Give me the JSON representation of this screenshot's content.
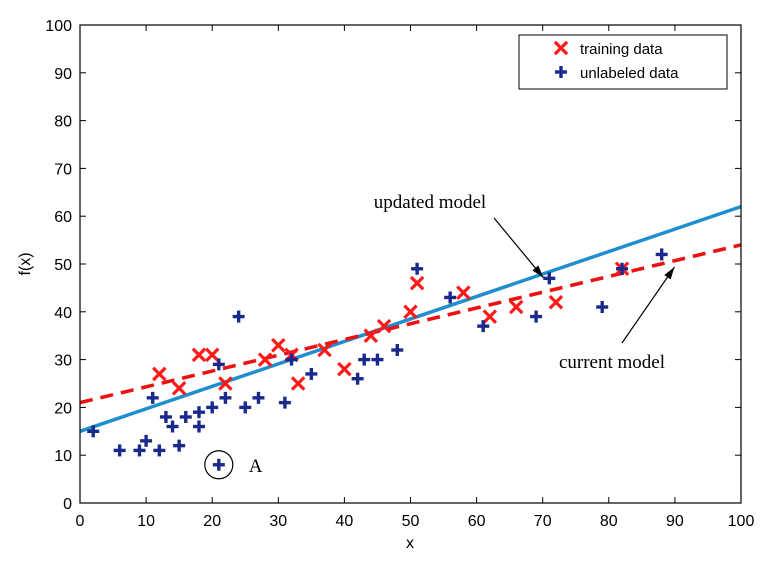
{
  "chart_data": {
    "type": "scatter",
    "xlabel": "x",
    "ylabel": "f(x)",
    "xlim": [
      0,
      100
    ],
    "ylim": [
      0,
      100
    ],
    "xticks": [
      "0",
      "10",
      "20",
      "30",
      "40",
      "50",
      "60",
      "70",
      "80",
      "90",
      "100"
    ],
    "yticks": [
      "0",
      "10",
      "20",
      "30",
      "40",
      "50",
      "60",
      "70",
      "80",
      "90",
      "100"
    ],
    "legend_position": "top-right",
    "legend": [
      {
        "label": "training data",
        "marker": "x",
        "color": "#ff1a1a"
      },
      {
        "label": "unlabeled data",
        "marker": "+",
        "color": "#1a2a8c"
      }
    ],
    "series": [
      {
        "name": "training data",
        "color": "#ff1a1a",
        "marker": "x",
        "points": [
          [
            12,
            27
          ],
          [
            15,
            24
          ],
          [
            18,
            31
          ],
          [
            20,
            31
          ],
          [
            22,
            25
          ],
          [
            28,
            30
          ],
          [
            30,
            33
          ],
          [
            32,
            31
          ],
          [
            33,
            25
          ],
          [
            37,
            32
          ],
          [
            40,
            28
          ],
          [
            44,
            35
          ],
          [
            46,
            37
          ],
          [
            50,
            40
          ],
          [
            51,
            46
          ],
          [
            58,
            44
          ],
          [
            62,
            39
          ],
          [
            66,
            41
          ],
          [
            72,
            42
          ],
          [
            82,
            49
          ]
        ]
      },
      {
        "name": "unlabeled data",
        "color": "#1a2a8c",
        "marker": "+",
        "points": [
          [
            2,
            15
          ],
          [
            6,
            11
          ],
          [
            9,
            11
          ],
          [
            10,
            13
          ],
          [
            11,
            22
          ],
          [
            12,
            11
          ],
          [
            13,
            18
          ],
          [
            14,
            16
          ],
          [
            15,
            12
          ],
          [
            16,
            18
          ],
          [
            18,
            19
          ],
          [
            18,
            16
          ],
          [
            20,
            20
          ],
          [
            21,
            29
          ],
          [
            22,
            22
          ],
          [
            24,
            39
          ],
          [
            25,
            20
          ],
          [
            27,
            22
          ],
          [
            31,
            21
          ],
          [
            32,
            30
          ],
          [
            35,
            27
          ],
          [
            42,
            26
          ],
          [
            43,
            30
          ],
          [
            45,
            30
          ],
          [
            48,
            32
          ],
          [
            51,
            49
          ],
          [
            56,
            43
          ],
          [
            61,
            37
          ],
          [
            69,
            39
          ],
          [
            71,
            47
          ],
          [
            79,
            41
          ],
          [
            82,
            49
          ],
          [
            88,
            52
          ],
          [
            21,
            8
          ]
        ]
      }
    ],
    "lines": [
      {
        "name": "updated model",
        "color": "#1f8ecf",
        "style": "solid",
        "x": [
          0,
          100
        ],
        "y": [
          15,
          62
        ]
      },
      {
        "name": "current model",
        "color": "#ee1111",
        "style": "dashed",
        "x": [
          0,
          100
        ],
        "y": [
          21,
          54
        ]
      }
    ],
    "annotations": [
      {
        "text": "updated model",
        "arrow_to": [
          71,
          48
        ]
      },
      {
        "text": "current model",
        "arrow_to": [
          91,
          50
        ]
      },
      {
        "text": "A",
        "circled_point": [
          21,
          8
        ]
      }
    ]
  }
}
